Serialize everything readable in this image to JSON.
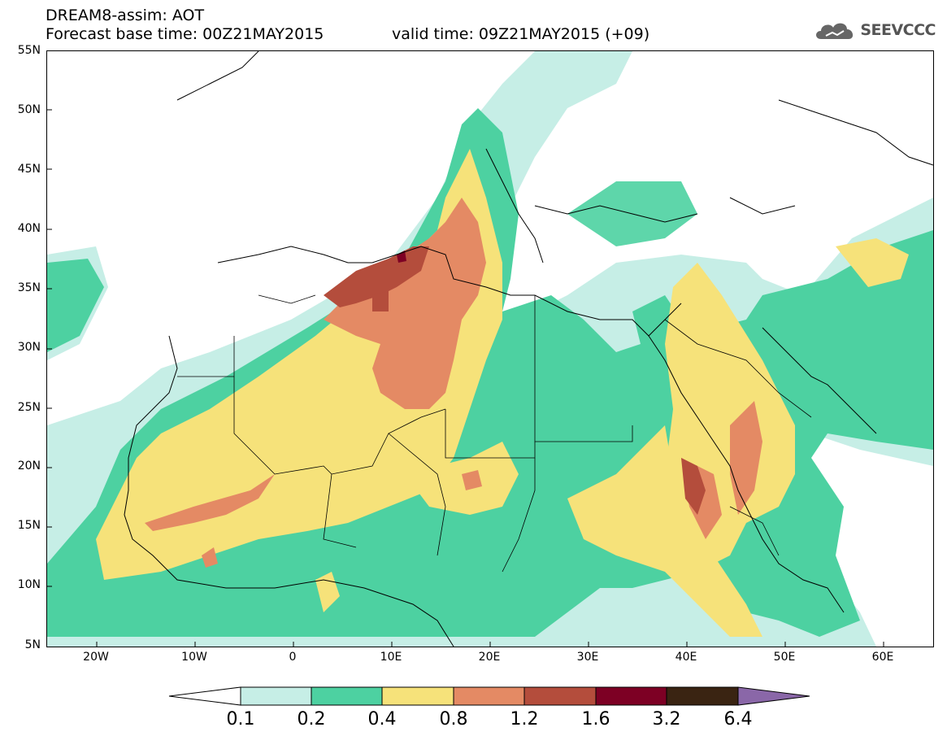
{
  "title": {
    "line1": "DREAM8-assim: AOT",
    "line2": "Forecast base time: 00Z21MAY2015",
    "valid": "valid time: 09Z21MAY2015 (+09)"
  },
  "logo": {
    "text": "SEEVCCC",
    "icon": "cloud-icon"
  },
  "map": {
    "y_labels": [
      "55N",
      "50N",
      "45N",
      "40N",
      "35N",
      "30N",
      "25N",
      "20N",
      "15N",
      "10N",
      "5N"
    ],
    "x_labels": [
      "20W",
      "10W",
      "0",
      "10E",
      "20E",
      "30E",
      "40E",
      "50E",
      "60E"
    ],
    "lon_range": [
      -25,
      65
    ],
    "lat_range": [
      5,
      55
    ]
  },
  "colorbar": {
    "labels": [
      "0.1",
      "0.2",
      "0.4",
      "0.8",
      "1.2",
      "1.6",
      "3.2",
      "6.4"
    ],
    "colors": {
      "below": "#ffffff",
      "c1": "#c6eee6",
      "c2": "#4dd1a1",
      "c3": "#f6e27a",
      "c4": "#e48a64",
      "c5": "#b44d3c",
      "c6": "#7d0024",
      "c7": "#3a2412",
      "above": "#8a67a8"
    }
  }
}
